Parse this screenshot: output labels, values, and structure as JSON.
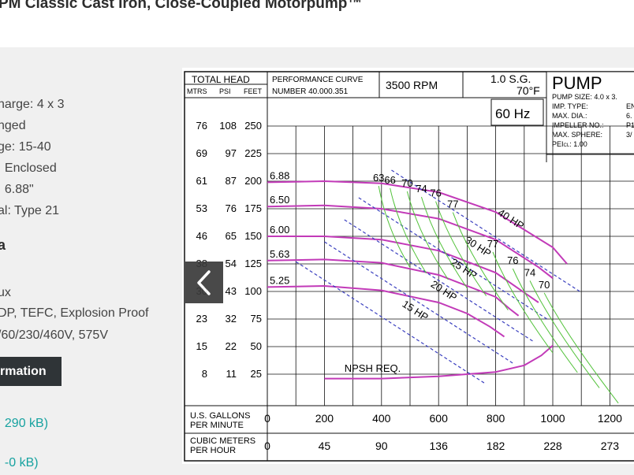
{
  "product_title": "PM Classic Cast Iron, Close-Coupled Motorpump™",
  "specs": [
    "harge: 4 x 3",
    "nged",
    "ge: 15-40",
    ": Enclosed",
    ": 6.88\"",
    "al: Type 21"
  ],
  "motor_section": {
    "heading": "a",
    "lines": [
      "ux",
      "DP, TEFC, Explosion Proof",
      "/60/230/460V, 575V"
    ]
  },
  "info_button_label": "rmation",
  "file_links": [
    ", 290 kB)",
    ", -0 kB)"
  ],
  "colors": {
    "panel_bg": "#f0f0f0",
    "button_bg": "#2f3437",
    "link": "#17a2a0",
    "curve": "#c23ab8",
    "efficiency": "#52c23a",
    "hp_line": "#3a3fbf"
  },
  "chart_data": {
    "type": "line",
    "header": {
      "total_head": "TOTAL HEAD",
      "col_mtrs": "MTRS",
      "col_psi": "PSI",
      "col_feet": "FEET",
      "performance_curve": "PERFORMANCE  CURVE",
      "curve_number": "NUMBER   40.000.351",
      "rpm": "3500  RPM",
      "sg_line1": "1.0 S.G.",
      "sg_line2": "70°F",
      "hz": "60 Hz",
      "pump": "PUMP",
      "pump_size": "PUMP SIZE: 4.0 x 3.",
      "imp_type": "IMP. TYPE:",
      "imp_type_val": "EN",
      "max_dia": "MAX. DIA.:",
      "max_dia_val": "6.",
      "impeller_no": "IMPELLER NO.:",
      "impeller_no_val": "P1",
      "max_sphere": "MAX. SPHERE:",
      "max_sphere_val": "3/",
      "pei": "PEI",
      "pei_sub": "CL",
      "pei_val": ":   1.00"
    },
    "y_ticks_feet": [
      "250",
      "225",
      "200",
      "175",
      "150",
      "125",
      "100",
      "75",
      "50",
      "25"
    ],
    "y_ticks_psi": [
      "108",
      "97",
      "87",
      "76",
      "65",
      "54",
      "43",
      "32",
      "22",
      "11"
    ],
    "y_ticks_mtrs": [
      "76",
      "69",
      "61",
      "53",
      "46",
      "38",
      "30",
      "23",
      "15",
      "8"
    ],
    "x_ticks_gpm": [
      "0",
      "200",
      "400",
      "600",
      "800",
      "1000",
      "1200"
    ],
    "x_ticks_m3h": [
      "0",
      "45",
      "90",
      "136",
      "182",
      "228",
      "273"
    ],
    "x_label_gpm": [
      "U.S.  GALLONS",
      "PER  MINUTE"
    ],
    "x_label_m3h": [
      "CUBIC METERS",
      "PER  HOUR"
    ],
    "series": [
      {
        "name": "6.88",
        "x": [
          0,
          200,
          400,
          600,
          800,
          1000,
          1050
        ],
        "y": [
          199,
          200,
          198,
          190,
          172,
          140,
          125
        ]
      },
      {
        "name": "6.50",
        "x": [
          0,
          200,
          400,
          600,
          800,
          950,
          1000
        ],
        "y": [
          177,
          178,
          175,
          166,
          147,
          122,
          112
        ]
      },
      {
        "name": "6.00",
        "x": [
          0,
          200,
          400,
          600,
          800,
          900,
          950
        ],
        "y": [
          150,
          150,
          147,
          137,
          117,
          99,
          90
        ]
      },
      {
        "name": "5.63",
        "x": [
          0,
          200,
          400,
          600,
          800,
          850,
          880
        ],
        "y": [
          128,
          129,
          126,
          115,
          95,
          84,
          78
        ]
      },
      {
        "name": "5.25",
        "x": [
          0,
          200,
          400,
          600,
          700,
          780,
          830
        ],
        "y": [
          104,
          105,
          101,
          90,
          80,
          68,
          59
        ]
      }
    ],
    "npsh": {
      "label": "NPSH REQ.",
      "x": [
        200,
        400,
        600,
        800,
        900,
        960,
        1000
      ],
      "y": [
        16,
        16,
        18,
        22,
        28,
        37,
        46
      ]
    },
    "efficiency_labels": [
      {
        "text": "63",
        "x": 390,
        "y": 200
      },
      {
        "text": "66",
        "x": 430,
        "y": 198
      },
      {
        "text": "70",
        "x": 490,
        "y": 195
      },
      {
        "text": "74",
        "x": 540,
        "y": 190
      },
      {
        "text": "76",
        "x": 590,
        "y": 186
      },
      {
        "text": "77",
        "x": 650,
        "y": 176
      },
      {
        "text": "77",
        "x": 790,
        "y": 140
      },
      {
        "text": "76",
        "x": 860,
        "y": 125
      },
      {
        "text": "74",
        "x": 920,
        "y": 114
      },
      {
        "text": "70",
        "x": 970,
        "y": 103
      }
    ],
    "hp_labels": [
      {
        "text": "40 HP",
        "x": 805,
        "y": 170
      },
      {
        "text": "30 HP",
        "x": 690,
        "y": 145
      },
      {
        "text": "25 HP",
        "x": 640,
        "y": 125
      },
      {
        "text": "20 HP",
        "x": 570,
        "y": 105
      },
      {
        "text": "15 HP",
        "x": 470,
        "y": 87
      }
    ],
    "xlim": [
      0,
      1300
    ],
    "ylim": [
      0,
      270
    ]
  }
}
